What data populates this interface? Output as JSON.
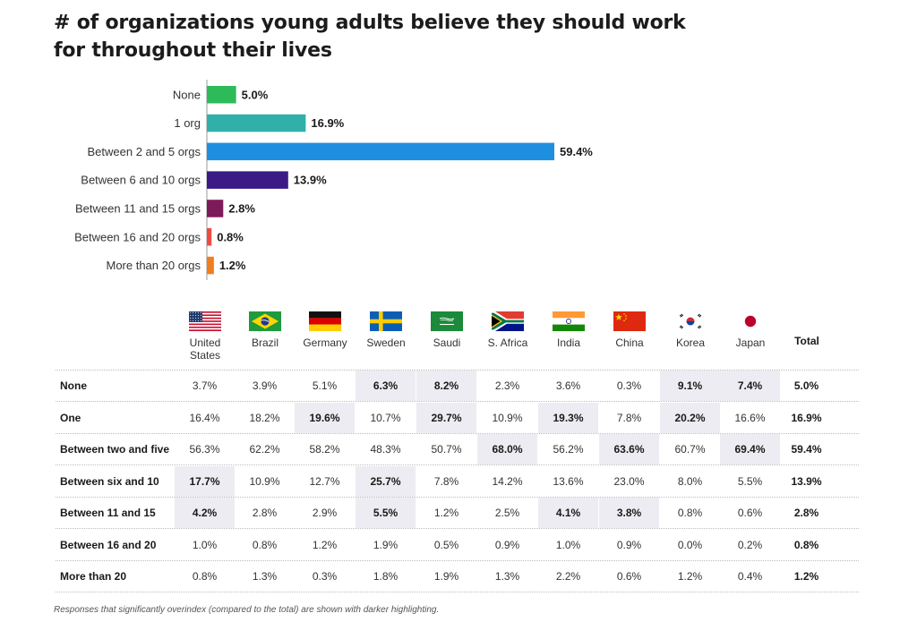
{
  "title_line1": "# of organizations young adults believe they should work",
  "title_line2": "for throughout their lives",
  "chart_data": {
    "type": "bar",
    "orientation": "horizontal",
    "categories": [
      "None",
      "1 org",
      "Between 2 and 5 orgs",
      "Between 6 and 10 orgs",
      "Between 11 and 15 orgs",
      "Between 16 and 20 orgs",
      "More than 20 orgs"
    ],
    "values": [
      5.0,
      16.9,
      59.4,
      13.9,
      2.8,
      0.8,
      1.2
    ],
    "value_labels": [
      "5.0%",
      "16.9%",
      "59.4%",
      "13.9%",
      "2.8%",
      "0.8%",
      "1.2%"
    ],
    "colors": [
      "#2dbb5a",
      "#30b0a8",
      "#1e8fe0",
      "#3b1a86",
      "#7d1b5a",
      "#f04a40",
      "#f27d1d"
    ],
    "xlim": [
      0,
      60
    ],
    "grid": false,
    "legend": "none"
  },
  "table": {
    "countries": [
      {
        "name": "United States",
        "flag": "us-flag"
      },
      {
        "name": "Brazil",
        "flag": "brazil-flag"
      },
      {
        "name": "Germany",
        "flag": "germany-flag"
      },
      {
        "name": "Sweden",
        "flag": "sweden-flag"
      },
      {
        "name": "Saudi",
        "flag": "saudi-flag"
      },
      {
        "name": "S. Africa",
        "flag": "south-africa-flag"
      },
      {
        "name": "India",
        "flag": "india-flag"
      },
      {
        "name": "China",
        "flag": "china-flag"
      },
      {
        "name": "Korea",
        "flag": "korea-flag"
      },
      {
        "name": "Japan",
        "flag": "japan-flag"
      }
    ],
    "total_label": "Total",
    "highlight_color": "#ececf2",
    "rows": [
      {
        "label": "None",
        "values": [
          "3.7%",
          "3.9%",
          "5.1%",
          "6.3%",
          "8.2%",
          "2.3%",
          "3.6%",
          "0.3%",
          "9.1%",
          "7.4%"
        ],
        "highlighted": [
          3,
          4,
          8,
          9
        ],
        "total": "5.0%"
      },
      {
        "label": "One",
        "values": [
          "16.4%",
          "18.2%",
          "19.6%",
          "10.7%",
          "29.7%",
          "10.9%",
          "19.3%",
          "7.8%",
          "20.2%",
          "16.6%"
        ],
        "highlighted": [
          2,
          4,
          6,
          8
        ],
        "total": "16.9%"
      },
      {
        "label": "Between two and five",
        "values": [
          "56.3%",
          "62.2%",
          "58.2%",
          "48.3%",
          "50.7%",
          "68.0%",
          "56.2%",
          "63.6%",
          "60.7%",
          "69.4%"
        ],
        "highlighted": [
          5,
          7,
          9
        ],
        "total": "59.4%"
      },
      {
        "label": "Between six and 10",
        "values": [
          "17.7%",
          "10.9%",
          "12.7%",
          "25.7%",
          "7.8%",
          "14.2%",
          "13.6%",
          "23.0%",
          "8.0%",
          "5.5%"
        ],
        "highlighted": [
          0,
          3
        ],
        "total": "13.9%"
      },
      {
        "label": "Between 11 and 15",
        "values": [
          "4.2%",
          "2.8%",
          "2.9%",
          "5.5%",
          "1.2%",
          "2.5%",
          "4.1%",
          "3.8%",
          "0.8%",
          "0.6%"
        ],
        "highlighted": [
          0,
          3,
          6,
          7
        ],
        "total": "2.8%"
      },
      {
        "label": "Between 16 and 20",
        "values": [
          "1.0%",
          "0.8%",
          "1.2%",
          "1.9%",
          "0.5%",
          "0.9%",
          "1.0%",
          "0.9%",
          "0.0%",
          "0.2%"
        ],
        "highlighted": [],
        "total": "0.8%"
      },
      {
        "label": "More than 20",
        "values": [
          "0.8%",
          "1.3%",
          "0.3%",
          "1.8%",
          "1.9%",
          "1.3%",
          "2.2%",
          "0.6%",
          "1.2%",
          "0.4%"
        ],
        "highlighted": [],
        "total": "1.2%"
      }
    ]
  },
  "footnote": "Responses that significantly overindex (compared to the total) are shown with darker highlighting."
}
